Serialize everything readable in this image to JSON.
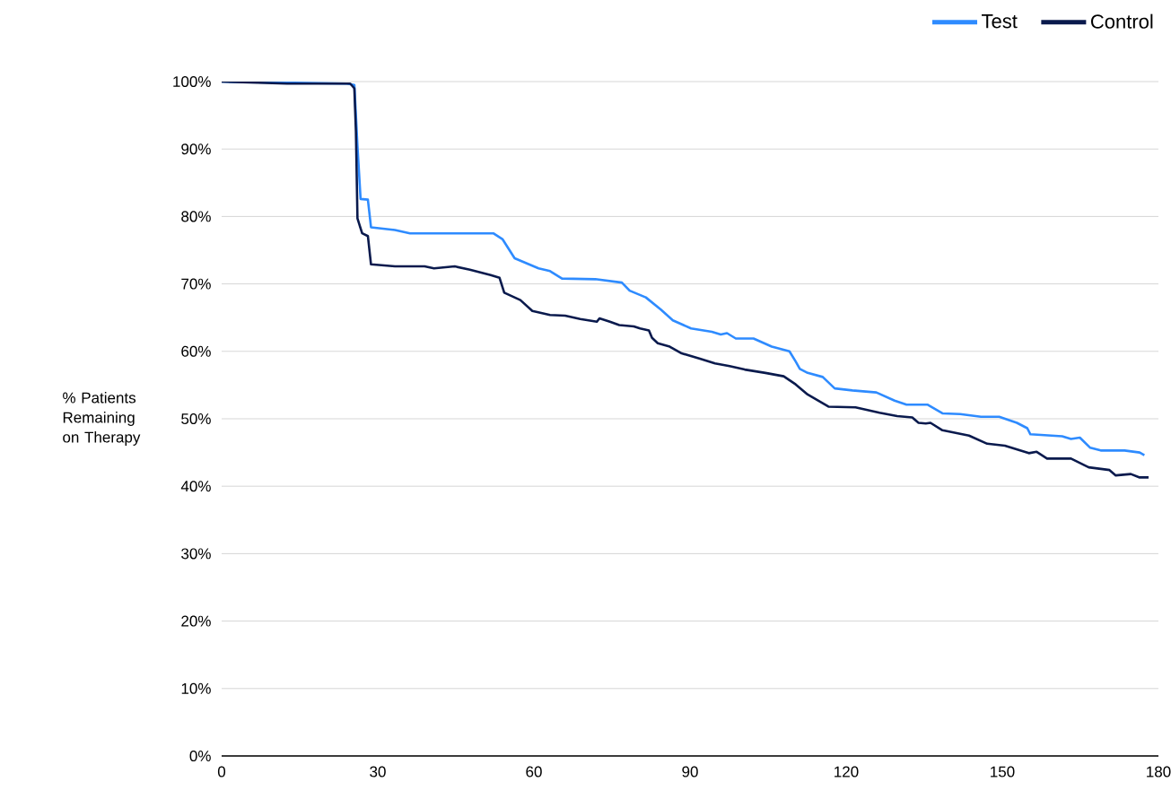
{
  "chart_data": {
    "type": "line",
    "ylabel": "% Patients Remaining on Therapy",
    "xlim": [
      0,
      180
    ],
    "xticks": [
      0,
      30,
      60,
      90,
      120,
      150,
      180
    ],
    "ylim": [
      0,
      100
    ],
    "yticks": [
      {
        "value": 0,
        "label": "0%"
      },
      {
        "value": 10,
        "label": "10%"
      },
      {
        "value": 20,
        "label": "20%"
      },
      {
        "value": 30,
        "label": "30%"
      },
      {
        "value": 40,
        "label": "40%"
      },
      {
        "value": 50,
        "label": "50%"
      },
      {
        "value": 60,
        "label": "60%"
      },
      {
        "value": 70,
        "label": "70%"
      },
      {
        "value": 80,
        "label": "80%"
      },
      {
        "value": 90,
        "label": "90%"
      },
      {
        "value": 100,
        "label": "100%"
      }
    ],
    "grid": "y",
    "legend": "top right",
    "series": [
      {
        "name": "Test",
        "color": "#2e8bff",
        "x": [
          0,
          24.1,
          25.5,
          26.1,
          26.7,
          28.1,
          28.7,
          33.3,
          36.2,
          47.6,
          52.2,
          54,
          56.3,
          60.9,
          63.1,
          65.4,
          71.8,
          76.9,
          78.4,
          81.5,
          84.4,
          86.7,
          90.2,
          94.2,
          95.9,
          97.1,
          98.8,
          102.2,
          105.7,
          109.1,
          110.3,
          111.1,
          112.6,
          115.5,
          117.8,
          121.2,
          125.8,
          129.3,
          131.6,
          135.6,
          138.5,
          141.9,
          145.9,
          149.4,
          152.8,
          154.8,
          155.4,
          161.5,
          163.2,
          164.9,
          166.9,
          168.9,
          173.5,
          176.4,
          177.3
        ],
        "values": [
          100,
          99.7,
          99.5,
          90.4,
          82.6,
          82.5,
          78.4,
          78.0,
          77.5,
          77.5,
          77.5,
          76.6,
          73.8,
          72.3,
          71.9,
          70.8,
          70.7,
          70.2,
          69.0,
          68.0,
          66.2,
          64.6,
          63.4,
          62.9,
          62.5,
          62.7,
          61.9,
          61.9,
          60.7,
          60.0,
          58.5,
          57.4,
          56.8,
          56.2,
          54.5,
          54.2,
          53.9,
          52.7,
          52.1,
          52.1,
          50.8,
          50.7,
          50.3,
          50.3,
          49.4,
          48.6,
          47.7,
          47.4,
          47.0,
          47.2,
          45.7,
          45.3,
          45.3,
          45.0,
          44.6
        ]
      },
      {
        "name": "Control",
        "color": "#0a1a4d",
        "x": [
          0,
          12.6,
          24.7,
          25.5,
          25.8,
          26.1,
          27,
          28.1,
          28.7,
          33.3,
          39,
          40.8,
          44.8,
          47.7,
          51.7,
          53.4,
          54.3,
          57.4,
          59.7,
          63.1,
          66,
          68.9,
          72.1,
          72.6,
          74.6,
          76.4,
          79.2,
          80.4,
          82.1,
          82.7,
          83.8,
          86.1,
          88.4,
          91.9,
          94.8,
          97.6,
          100.5,
          104.5,
          108,
          110.3,
          112.6,
          116.6,
          121.8,
          126.4,
          129.8,
          132.7,
          133.9,
          135.3,
          136.2,
          138.5,
          143.6,
          147.1,
          150.5,
          155.1,
          156.6,
          158.6,
          163.2,
          166.6,
          170.6,
          171.8,
          174.7,
          176.4,
          178.1
        ],
        "values": [
          100,
          99.7,
          99.7,
          99.0,
          92.6,
          79.7,
          77.5,
          77.1,
          72.9,
          72.6,
          72.6,
          72.3,
          72.6,
          72.1,
          71.3,
          70.9,
          68.7,
          67.6,
          66.0,
          65.4,
          65.3,
          64.8,
          64.4,
          64.9,
          64.4,
          63.9,
          63.7,
          63.4,
          63.1,
          62.0,
          61.2,
          60.7,
          59.7,
          58.9,
          58.2,
          57.8,
          57.3,
          56.8,
          56.3,
          55.1,
          53.6,
          51.8,
          51.7,
          50.9,
          50.4,
          50.2,
          49.4,
          49.3,
          49.4,
          48.3,
          47.5,
          46.3,
          46.0,
          44.9,
          45.1,
          44.1,
          44.1,
          42.8,
          42.4,
          41.6,
          41.8,
          41.3,
          41.3
        ]
      }
    ]
  }
}
